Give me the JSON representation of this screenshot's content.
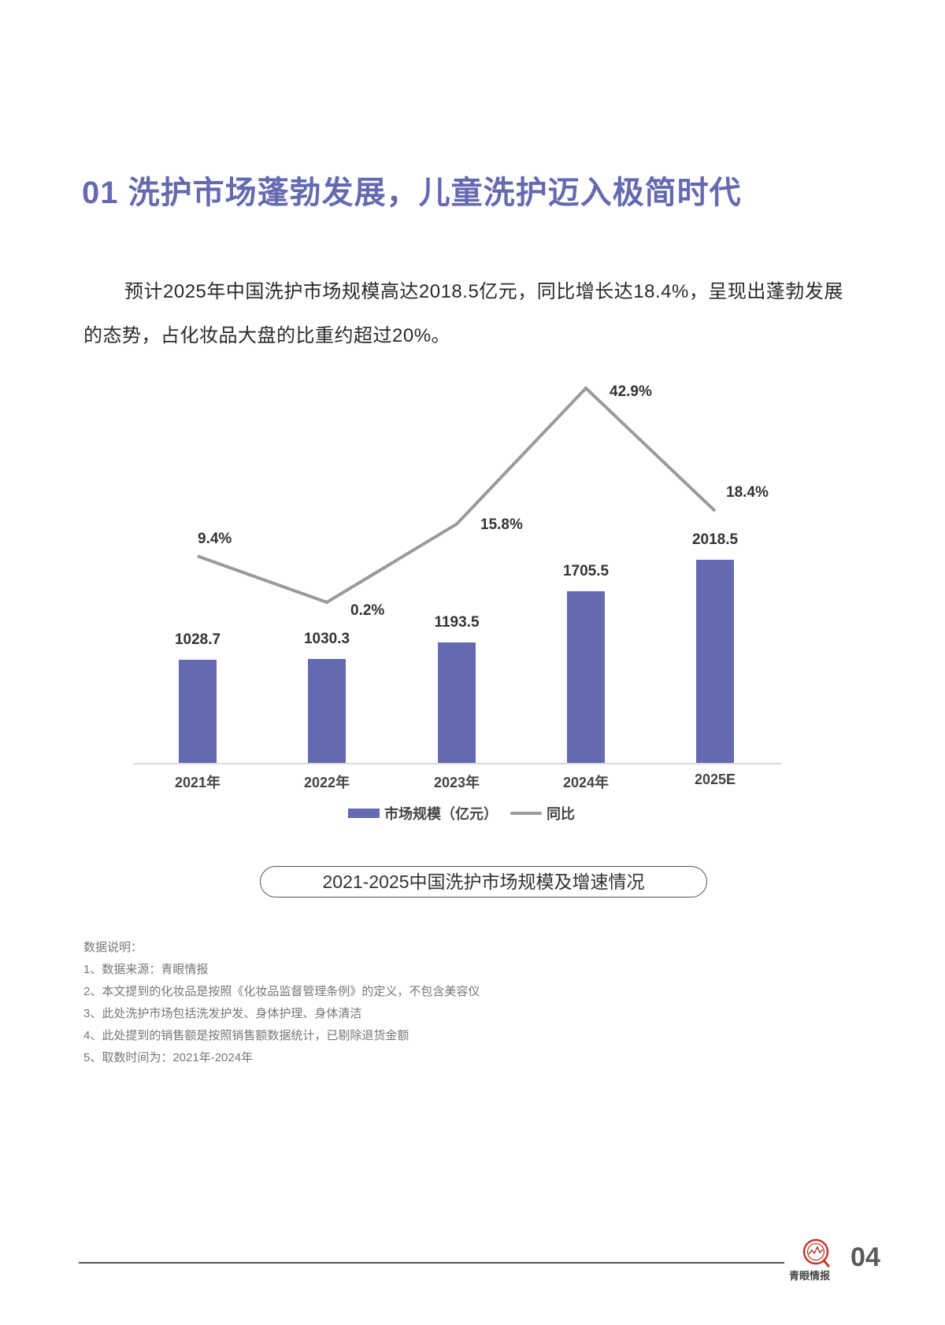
{
  "header": {
    "title": "01  洗护市场蓬勃发展，儿童洗护迈入极简时代"
  },
  "intro": {
    "line1": "预计2025年中国洗护市场规模高达2018.5亿元，同比增长达18.4%，呈现出蓬勃发展",
    "line2": "的态势，占化妆品大盘的比重约超过20%。"
  },
  "colors": {
    "accent": "#646ab0",
    "line": "#9a9a9a",
    "text": "#333333",
    "notes": "#777777"
  },
  "chart_data": {
    "type": "bar",
    "title": "2021-2025中国洗护市场规模及增速情况",
    "categories": [
      "2021年",
      "2022年",
      "2023年",
      "2024年",
      "2025E"
    ],
    "series": [
      {
        "name": "市场规模（亿元）",
        "type": "bar",
        "color": "#646ab0",
        "values": [
          1028.7,
          1030.3,
          1193.5,
          1705.5,
          2018.5
        ],
        "labels": [
          "1028.7",
          "1030.3",
          "1193.5",
          "1705.5",
          "2018.5"
        ]
      },
      {
        "name": "同比",
        "type": "line",
        "color": "#9a9a9a",
        "axis": "secondary",
        "values": [
          9.4,
          0.2,
          15.8,
          42.9,
          18.4
        ],
        "labels": [
          "9.4%",
          "0.2%",
          "15.8%",
          "42.9%",
          "18.4%"
        ]
      }
    ],
    "xlabel": "",
    "ylabel": "",
    "grid": false,
    "legend_position": "bottom",
    "legend": [
      "市场规模（亿元）",
      "同比"
    ]
  },
  "caption": "2021-2025中国洗护市场规模及增速情况",
  "notes": {
    "heading": "数据说明：",
    "items": [
      "1、数据来源：青眼情报",
      "2、本文提到的化妆品是按照《化妆品监督管理条例》的定义，不包含美容仪",
      "3、此处洗护市场包括洗发护发、身体护理、身体清洁",
      "4、此处提到的销售额是按照销售额数据统计，已剔除退货金额",
      "5、取数时间为：2021年-2024年"
    ]
  },
  "footer": {
    "logo_text": "青眼情报",
    "page_number": "04"
  }
}
